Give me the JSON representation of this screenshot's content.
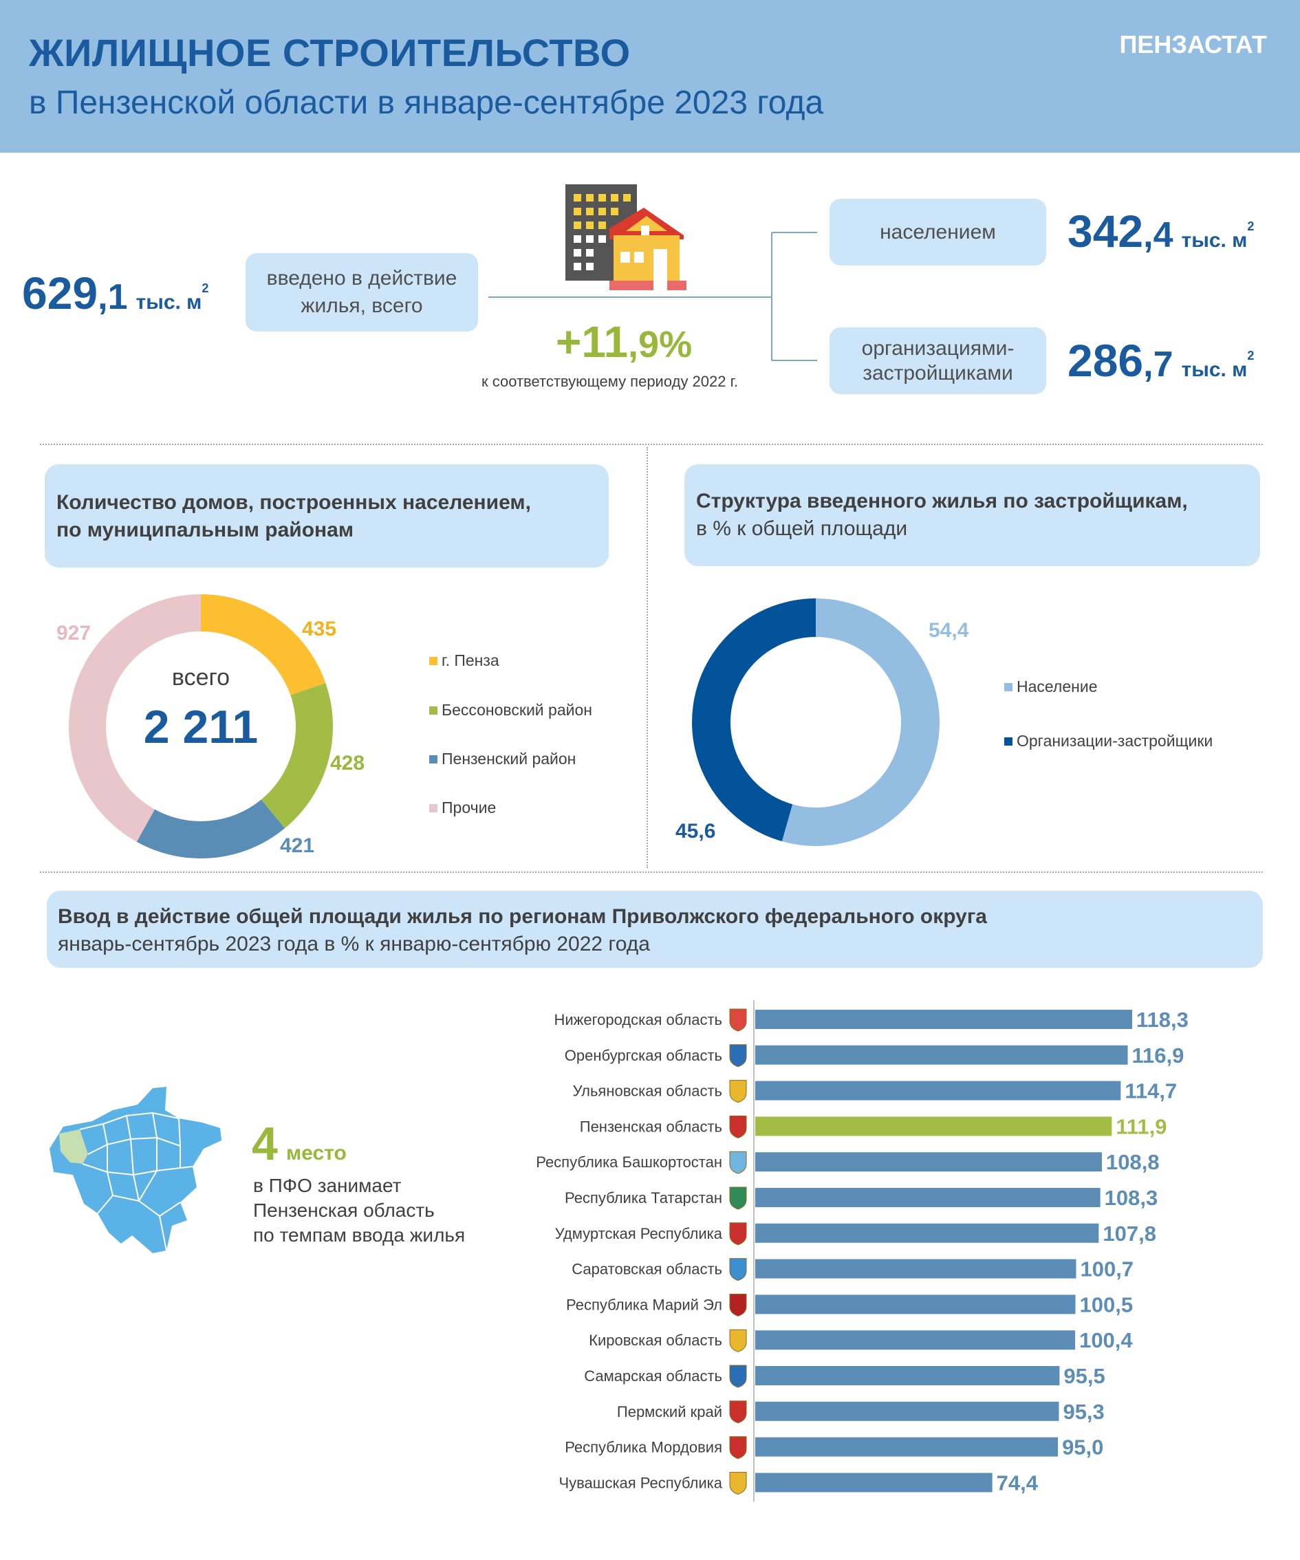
{
  "header": {
    "title": "ЖИЛИЩНОЕ СТРОИТЕЛЬСТВО",
    "subtitle": "в Пензенской области в январе-сентябре 2023 года",
    "brand": "ПЕНЗАСТАТ"
  },
  "summary": {
    "total_int": "629",
    "total_dec": ",1",
    "unit": "тыс. м",
    "unit_sup": "2",
    "total_label_1": "введено в действие",
    "total_label_2": "жилья, всего",
    "growth_int": "+11",
    "growth_dec": ",9%",
    "growth_note": "к соответствующему периоду 2022 г.",
    "population_label": "населением",
    "population_int": "342",
    "population_dec": ",4",
    "developers_label_1": "организациями-",
    "developers_label_2": "застройщиками",
    "developers_int": "286",
    "developers_dec": ",7"
  },
  "colors": {
    "dark_blue": "#1a5a9e",
    "green": "#97b83a",
    "yellow": "#fbbf2f",
    "steel": "#5a8db5",
    "pink": "#e9c6c9",
    "light_blue": "#94bde2",
    "navy": "#02539a"
  },
  "chart_data": [
    {
      "type": "pie",
      "variant": "donut",
      "title": "Количество домов, построенных населением,",
      "title_2": "по муниципальным районам",
      "center_label": "всего",
      "center_value": "2 211",
      "categories": [
        "г. Пенза",
        "Бессоновский район",
        "Пензенский район",
        "Прочие"
      ],
      "values": [
        435,
        428,
        421,
        927
      ],
      "value_labels": [
        "435",
        "428",
        "421",
        "927"
      ],
      "colors": [
        "#fbbf2f",
        "#a2bd46",
        "#5a8db5",
        "#e9c6c9"
      ],
      "label_colors": [
        "#f0b21c",
        "#97b83a",
        "#5a8db5",
        "#e6b9bd"
      ]
    },
    {
      "type": "pie",
      "variant": "donut",
      "title": "Структура  введенного жилья по застройщикам,",
      "title_2": "в % к общей площади",
      "categories": [
        "Население",
        "Организации-застройщики"
      ],
      "values": [
        54.4,
        45.6
      ],
      "value_labels": [
        "54,4",
        "45,6"
      ],
      "colors": [
        "#94bde2",
        "#02539a"
      ],
      "label_colors": [
        "#94bde2",
        "#1a5a9e"
      ]
    },
    {
      "type": "bar",
      "orientation": "horizontal",
      "title": "Ввод в действие общей площади жилья по регионам Приволжского федерального округа",
      "subtitle": "январь-сентябрь  2023 года в % к январю-сентябрю  2022 года",
      "categories": [
        "Нижегородская область",
        "Оренбургская область",
        "Ульяновская область",
        "Пензенская область",
        "Республика Башкортостан",
        "Республика Татарстан",
        "Удмуртская Республика",
        "Саратовская область",
        "Республика Марий Эл",
        "Кировская область",
        "Самарская область",
        "Пермский край",
        "Республика Мордовия",
        "Чувашская Республика"
      ],
      "values": [
        118.3,
        116.9,
        114.7,
        111.9,
        108.8,
        108.3,
        107.8,
        100.7,
        100.5,
        100.4,
        95.5,
        95.3,
        95.0,
        74.4
      ],
      "value_labels": [
        "118,3",
        "116,9",
        "114,7",
        "111,9",
        "108,8",
        "108,3",
        "107,8",
        "100,7",
        "100,5",
        "100,4",
        "95,5",
        "95,3",
        "95,0",
        "74,4"
      ],
      "highlight": "Пензенская область",
      "bar_color": "#5b8db6",
      "highlight_color": "#a2bd46",
      "xlim": [
        0,
        118.3
      ]
    }
  ],
  "ranking": {
    "place": "4",
    "place_word": "место",
    "line_1": "в ПФО занимает",
    "line_2": "Пензенская область",
    "line_3": "по темпам ввода жилья"
  }
}
